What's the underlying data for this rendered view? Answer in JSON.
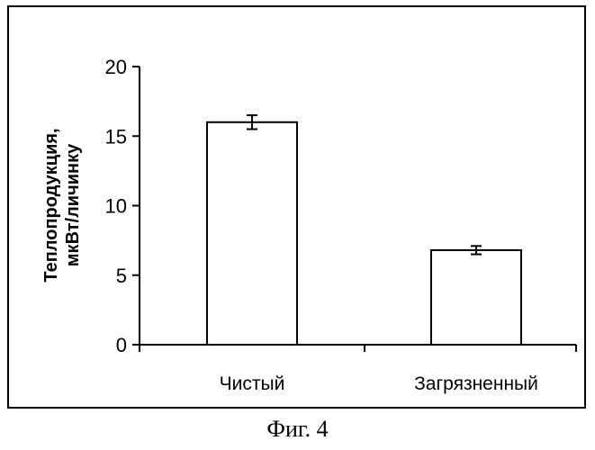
{
  "caption": "Фиг. 4",
  "chart_data": {
    "type": "bar",
    "categories": [
      "Чистый",
      "Загрязненный"
    ],
    "values": [
      16.0,
      6.8
    ],
    "errors": [
      0.5,
      0.3
    ],
    "ylabel": [
      "Теплопродукция,",
      "мкВт/личинку"
    ],
    "ylim": [
      0,
      20
    ],
    "yticks": [
      0,
      5,
      10,
      15,
      20
    ],
    "ytick_labels": [
      "0",
      "5",
      "10",
      "15",
      "20"
    ],
    "grid": false,
    "legend": false
  }
}
